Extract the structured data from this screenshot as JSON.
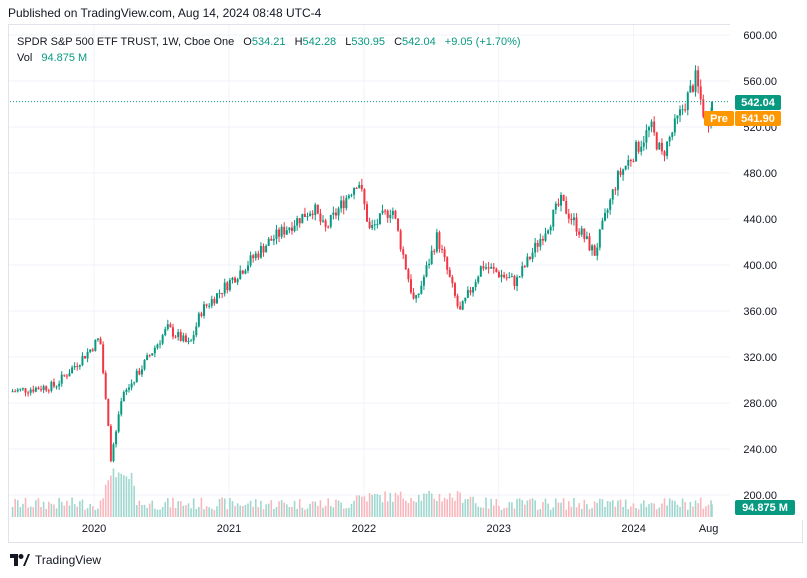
{
  "published": {
    "text": "Published on TradingView.com, Aug 14, 2024 08:48 UTC-4"
  },
  "legend": {
    "symbol": "SPDR S&P 500 ETF TRUST, 1W, Cboe One",
    "open_label": "O",
    "open": "534.21",
    "high_label": "H",
    "high": "542.28",
    "low_label": "L",
    "low": "530.95",
    "close_label": "C",
    "close": "542.04",
    "change": "+9.05 (+1.70%)",
    "vol_label": "Vol",
    "vol_value": "94.875 M"
  },
  "price_badges": {
    "last": "542.04",
    "pre_label": "Pre",
    "pre_value": "541.90",
    "volume": "94.875 M"
  },
  "colors": {
    "up": "#089981",
    "down": "#f23645",
    "up_volume": "#9fd7cf",
    "down_volume": "#f9b6bc",
    "pre": "#ff9800",
    "grid": "#f0f3fa",
    "text": "#131722"
  },
  "brand": {
    "name": "TradingView"
  },
  "chart_data": {
    "type": "candlestick",
    "title": "SPDR S&P 500 ETF TRUST, 1W, Cboe One",
    "timeframe": "1W",
    "y_axis": {
      "position": "right",
      "ticks": [
        "600.00",
        "560.00",
        "520.00",
        "480.00",
        "440.00",
        "400.00",
        "360.00",
        "320.00",
        "280.00",
        "240.00",
        "200.00"
      ],
      "range": [
        175,
        600
      ]
    },
    "x_axis": {
      "labels": [
        "2020",
        "2021",
        "2022",
        "2023",
        "2024",
        "Aug"
      ],
      "range": [
        "2019-06",
        "2024-08"
      ]
    },
    "last_price": 542.04,
    "pre_market_price": 541.9,
    "last_volume": "94.875 M",
    "price_keypoints": [
      {
        "t": "2019-06",
        "price": 290
      },
      {
        "t": "2019-10",
        "price": 295
      },
      {
        "t": "2020-01",
        "price": 325
      },
      {
        "t": "2020-02",
        "price": 337
      },
      {
        "t": "2020-03",
        "price": 230
      },
      {
        "t": "2020-04",
        "price": 285
      },
      {
        "t": "2020-08",
        "price": 345
      },
      {
        "t": "2020-10",
        "price": 330
      },
      {
        "t": "2020-11",
        "price": 360
      },
      {
        "t": "2021-01",
        "price": 380
      },
      {
        "t": "2021-05",
        "price": 420
      },
      {
        "t": "2021-09",
        "price": 450
      },
      {
        "t": "2021-10",
        "price": 430
      },
      {
        "t": "2022-01",
        "price": 475
      },
      {
        "t": "2022-02",
        "price": 430
      },
      {
        "t": "2022-04",
        "price": 450
      },
      {
        "t": "2022-06",
        "price": 365
      },
      {
        "t": "2022-08",
        "price": 425
      },
      {
        "t": "2022-10",
        "price": 358
      },
      {
        "t": "2022-12",
        "price": 400
      },
      {
        "t": "2023-03",
        "price": 385
      },
      {
        "t": "2023-07",
        "price": 455
      },
      {
        "t": "2023-10",
        "price": 410
      },
      {
        "t": "2023-12",
        "price": 475
      },
      {
        "t": "2024-03",
        "price": 520
      },
      {
        "t": "2024-04",
        "price": 495
      },
      {
        "t": "2024-07",
        "price": 562
      },
      {
        "t": "2024-08",
        "price": 520
      },
      {
        "t": "2024-08-14",
        "price": 542
      }
    ]
  }
}
